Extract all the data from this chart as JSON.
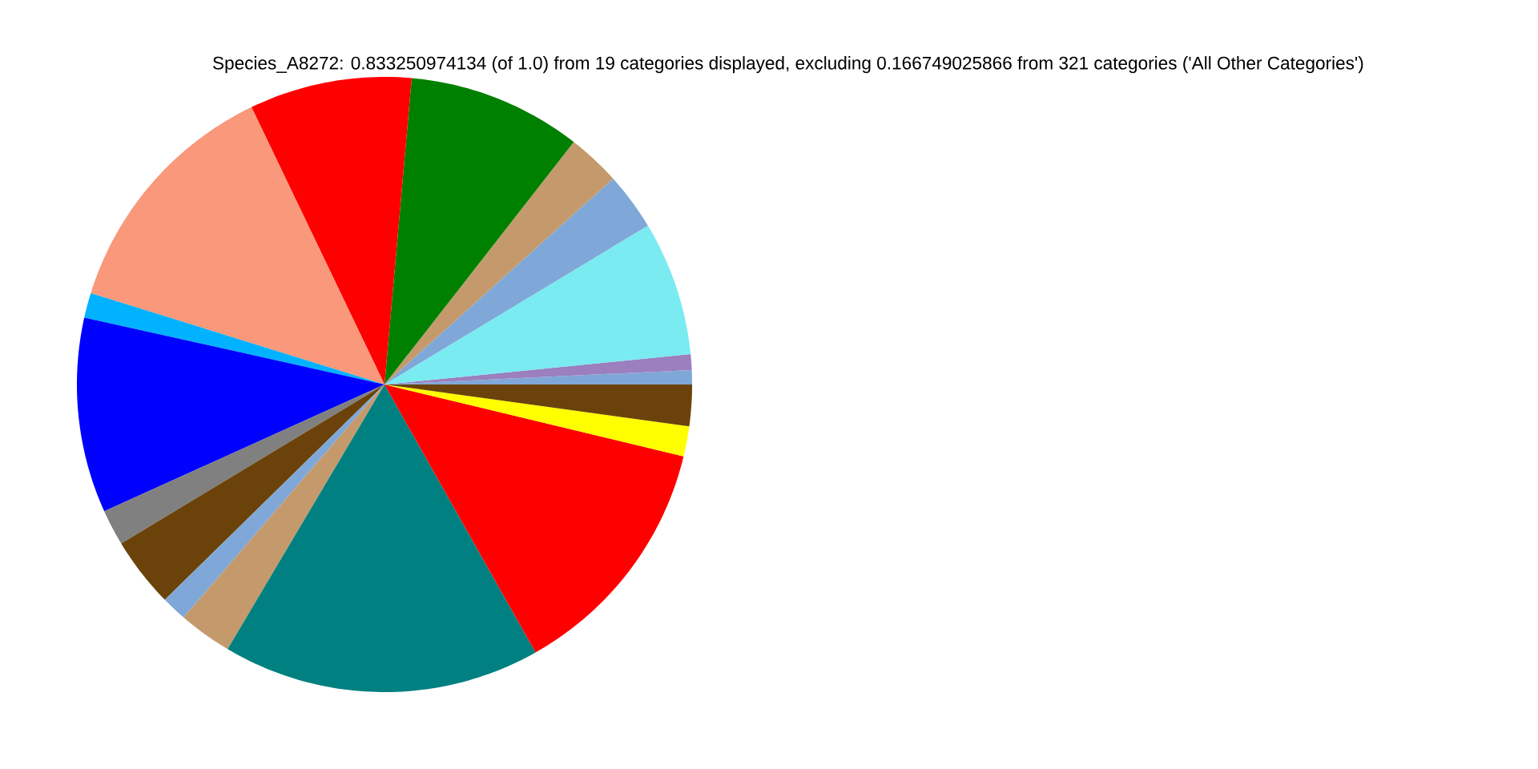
{
  "chart_data": {
    "type": "pie",
    "title": "Species_A8272: 0.833250974134 (of 1.0) from 19 categories displayed, excluding 0.166749025866 from 321 categories ('All Other Categories')",
    "categories": [
      null,
      null,
      null,
      null,
      null,
      null,
      null,
      null,
      null,
      null,
      null,
      null,
      null,
      null,
      null,
      null,
      null,
      null
    ],
    "values": [
      0.75,
      0.83,
      7.06,
      3.03,
      2.78,
      9.14,
      8.53,
      13.08,
      1.31,
      10.25,
      1.89,
      3.69,
      1.33,
      2.81,
      16.69,
      13.08,
      1.58,
      2.17
    ],
    "colors": [
      "#7fa8d8",
      "#9b7fbf",
      "#7aebf0",
      "#7fa8d8",
      "#c49a6c",
      "#008000",
      "#ff0000",
      "#f9987a",
      "#00b2ff",
      "#0000ff",
      "#808080",
      "#6b430a",
      "#7fa8d8",
      "#c49a6c",
      "#008080",
      "#ff0000",
      "#ffff00",
      "#6b430a"
    ]
  }
}
